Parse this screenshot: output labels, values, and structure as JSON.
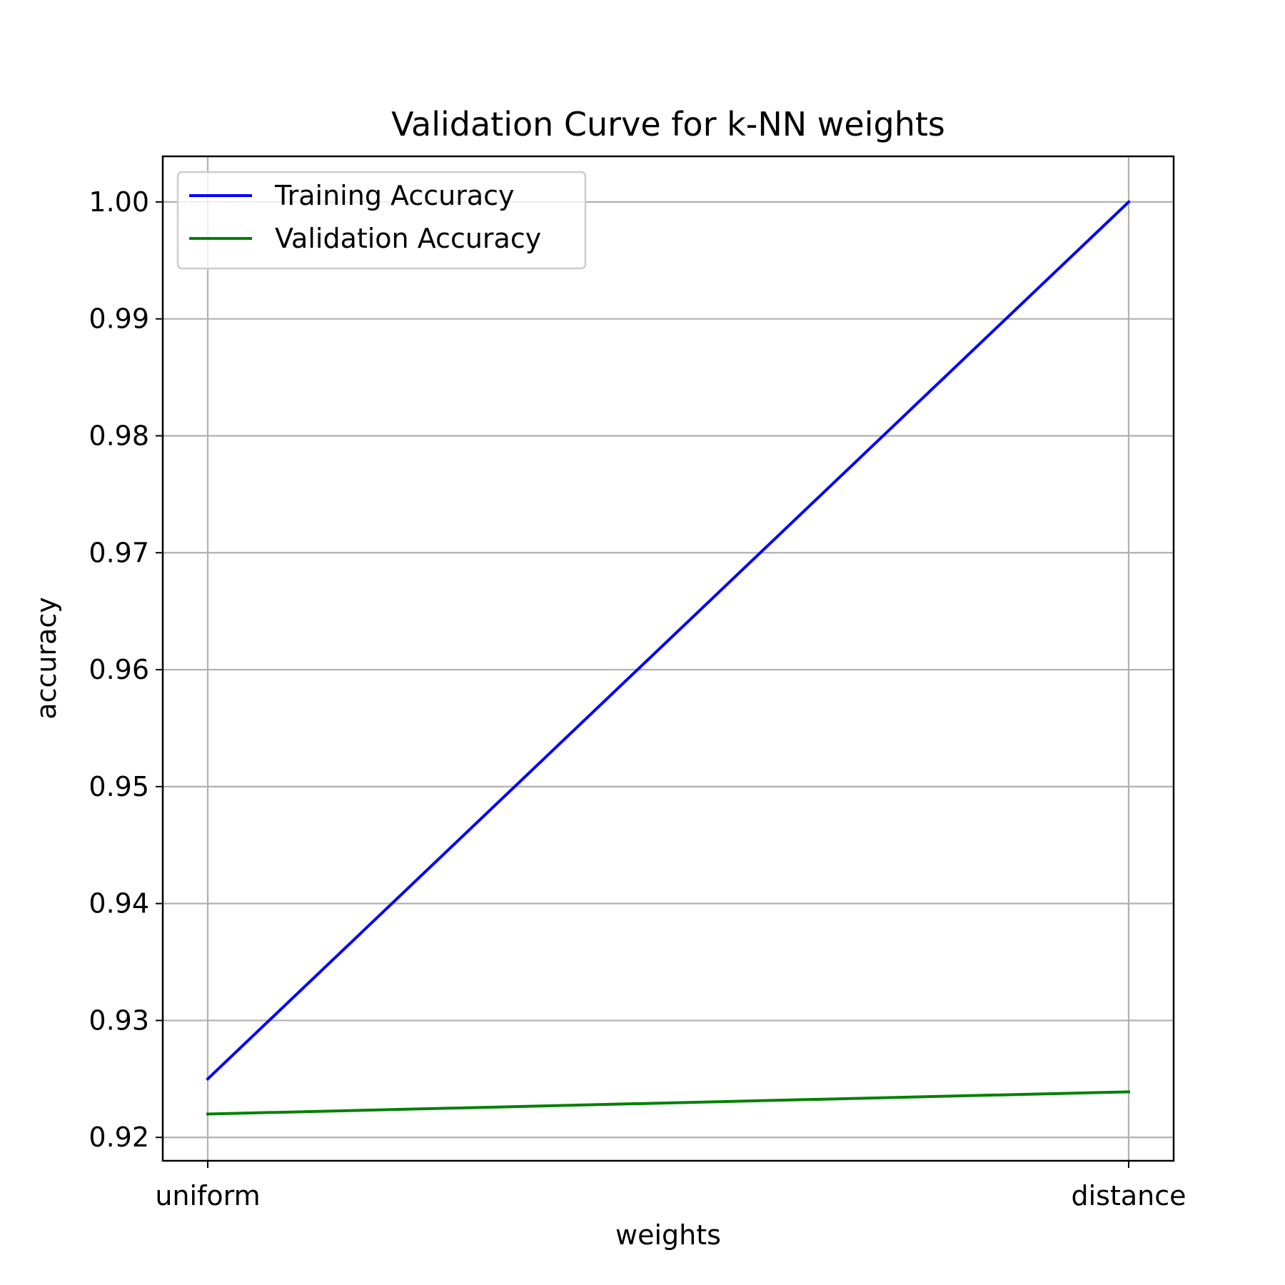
{
  "chart_data": {
    "type": "line",
    "title": "Validation Curve for k-NN weights",
    "xlabel": "weights",
    "ylabel": "accuracy",
    "categories": [
      "uniform",
      "distance"
    ],
    "ylim": [
      0.918,
      1.0039
    ],
    "yticks": [
      0.92,
      0.93,
      0.94,
      0.95,
      0.96,
      0.97,
      0.98,
      0.99,
      1.0
    ],
    "ytick_labels": [
      "0.92",
      "0.93",
      "0.94",
      "0.95",
      "0.96",
      "0.97",
      "0.98",
      "0.99",
      "1.00"
    ],
    "grid": true,
    "legend_position": "top-left",
    "series": [
      {
        "name": "Training Accuracy",
        "color": "#0000ff",
        "values": [
          0.925,
          1.0
        ]
      },
      {
        "name": "Validation Accuracy",
        "color": "#008000",
        "values": [
          0.922,
          0.9239
        ]
      }
    ]
  }
}
